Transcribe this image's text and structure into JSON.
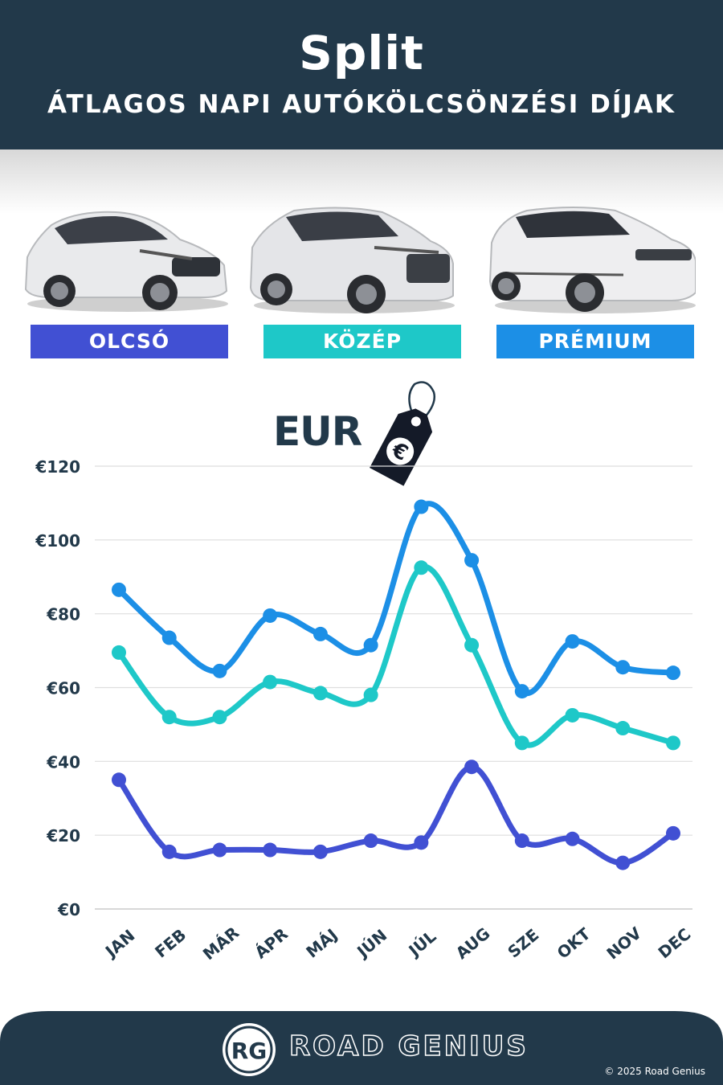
{
  "header": {
    "city": "Split",
    "subtitle": "ÁTLAGOS NAPI AUTÓKÖLCSÖNZÉSI DÍJAK"
  },
  "categories": [
    {
      "label": "OLCSÓ",
      "color": "#4150d3"
    },
    {
      "label": "KÖZÉP",
      "color": "#1ec8c8"
    },
    {
      "label": "PRÉMIUM",
      "color": "#1c8fe6"
    }
  ],
  "currency": {
    "label": "EUR",
    "symbol": "€"
  },
  "chart_data": {
    "type": "line",
    "categories": [
      "JAN",
      "FEB",
      "MÁR",
      "ÁPR",
      "MÁJ",
      "JÚN",
      "JÚL",
      "AUG",
      "SZE",
      "OKT",
      "NOV",
      "DEC"
    ],
    "series": [
      {
        "name": "PRÉMIUM",
        "color": "#1c8fe6",
        "values": [
          86.5,
          73.5,
          64.5,
          79.5,
          74.5,
          71.5,
          109,
          94.5,
          59,
          72.5,
          65.5,
          64
        ]
      },
      {
        "name": "KÖZÉP",
        "color": "#1ec8c8",
        "values": [
          69.5,
          52,
          52,
          61.5,
          58.5,
          58,
          92.5,
          71.5,
          45,
          52.5,
          49,
          45
        ]
      },
      {
        "name": "OLCSÓ",
        "color": "#4150d3",
        "values": [
          35,
          15.5,
          16,
          16,
          15.5,
          18.5,
          18,
          38.5,
          18.5,
          19,
          12.5,
          20.5
        ]
      }
    ],
    "yticks": [
      "€0",
      "€20",
      "€40",
      "€60",
      "€80",
      "€100",
      "€120"
    ],
    "ylim": [
      0,
      120
    ],
    "grid": true
  },
  "footer": {
    "logo_text": "RG",
    "brand": "ROAD GENIUS",
    "copyright": "© 2025 Road Genius"
  }
}
